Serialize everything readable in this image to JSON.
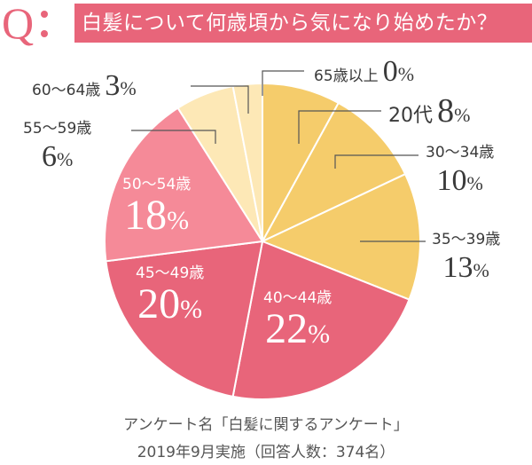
{
  "header": {
    "q_mark": "Q",
    "question": "白髪について何歳頃から気になり始めたか？"
  },
  "colors": {
    "accent": "#e8657a",
    "yellow_dark": "#f5cc6b",
    "yellow_light": "#fde8b6",
    "pink_light": "#f58a98",
    "pink_dark": "#e8657a",
    "text": "#3a3a3a"
  },
  "chart_data": {
    "type": "pie",
    "title": "白髪について何歳頃から気になり始めたか？",
    "start_angle": "top, clockwise",
    "categories": [
      "65歳以上",
      "20代",
      "30〜34歳",
      "35〜39歳",
      "40〜44歳",
      "45〜49歳",
      "50〜54歳",
      "55〜59歳",
      "60〜64歳"
    ],
    "values": [
      0,
      8,
      10,
      13,
      22,
      20,
      18,
      6,
      3
    ],
    "unit": "%",
    "slice_colors": [
      "#f5cc6b",
      "#f5cc6b",
      "#f5cc6b",
      "#f5cc6b",
      "#e8657a",
      "#e8657a",
      "#f58a98",
      "#fde8b6",
      "#fde8b6"
    ]
  },
  "labels": {
    "s65": {
      "age": "65歳以上",
      "num": "0",
      "unit": "%"
    },
    "s20": {
      "age": "20代",
      "num": "8",
      "unit": "%"
    },
    "s30": {
      "age": "30〜34歳",
      "num": "10",
      "unit": "%"
    },
    "s35": {
      "age": "35〜39歳",
      "num": "13",
      "unit": "%"
    },
    "s40": {
      "age": "40〜44歳",
      "num": "22",
      "unit": "%"
    },
    "s45": {
      "age": "45〜49歳",
      "num": "20",
      "unit": "%"
    },
    "s50": {
      "age": "50〜54歳",
      "num": "18",
      "unit": "%"
    },
    "s55": {
      "age": "55〜59歳",
      "num": "6",
      "unit": "%"
    },
    "s60": {
      "age": "60〜64歳",
      "num": "3",
      "unit": "%"
    }
  },
  "footer": {
    "line1": "アンケート名「白髪に関するアンケート」",
    "line2": "2019年9月実施（回答人数：374名）"
  }
}
